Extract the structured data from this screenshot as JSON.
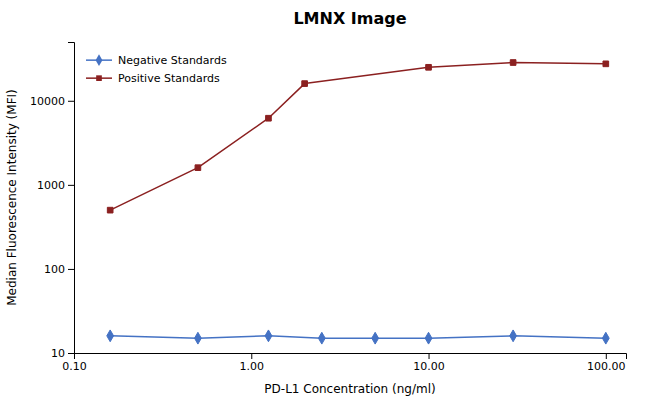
{
  "chart_data": {
    "type": "line",
    "title": "LMNX Image",
    "x_label": "PD-L1 Concentration (ng/ml)",
    "y_label": "Median Fluorescence Intensity (MFI)",
    "log": true,
    "grid": false,
    "legend": "upper left",
    "xlim": [
      0.1,
      130
    ],
    "ylim": [
      10,
      50000
    ],
    "xticks": [
      {
        "value": 0.1,
        "label": "0.10"
      },
      {
        "value": 1,
        "label": "1.00"
      },
      {
        "value": 10,
        "label": "10.00"
      },
      {
        "value": 100,
        "label": "100.00"
      }
    ],
    "yticks": [
      10,
      100,
      1000,
      10000
    ],
    "series": [
      {
        "name": "Negative Standards",
        "color": "#4472C4",
        "marker": "diamond",
        "x": [
          0.16,
          0.5,
          1.25,
          2.5,
          5.0,
          10.0,
          30.0,
          100.0
        ],
        "values": [
          16,
          15,
          16,
          15,
          15,
          15,
          16,
          15
        ]
      },
      {
        "name": "Positive Standards",
        "color": "#8B2020",
        "marker": "square",
        "x": [
          0.16,
          0.5,
          1.25,
          2.0,
          10.0,
          30.0,
          100.0
        ],
        "values": [
          500,
          1600,
          6200,
          16000,
          25000,
          28500,
          27500
        ]
      }
    ]
  }
}
